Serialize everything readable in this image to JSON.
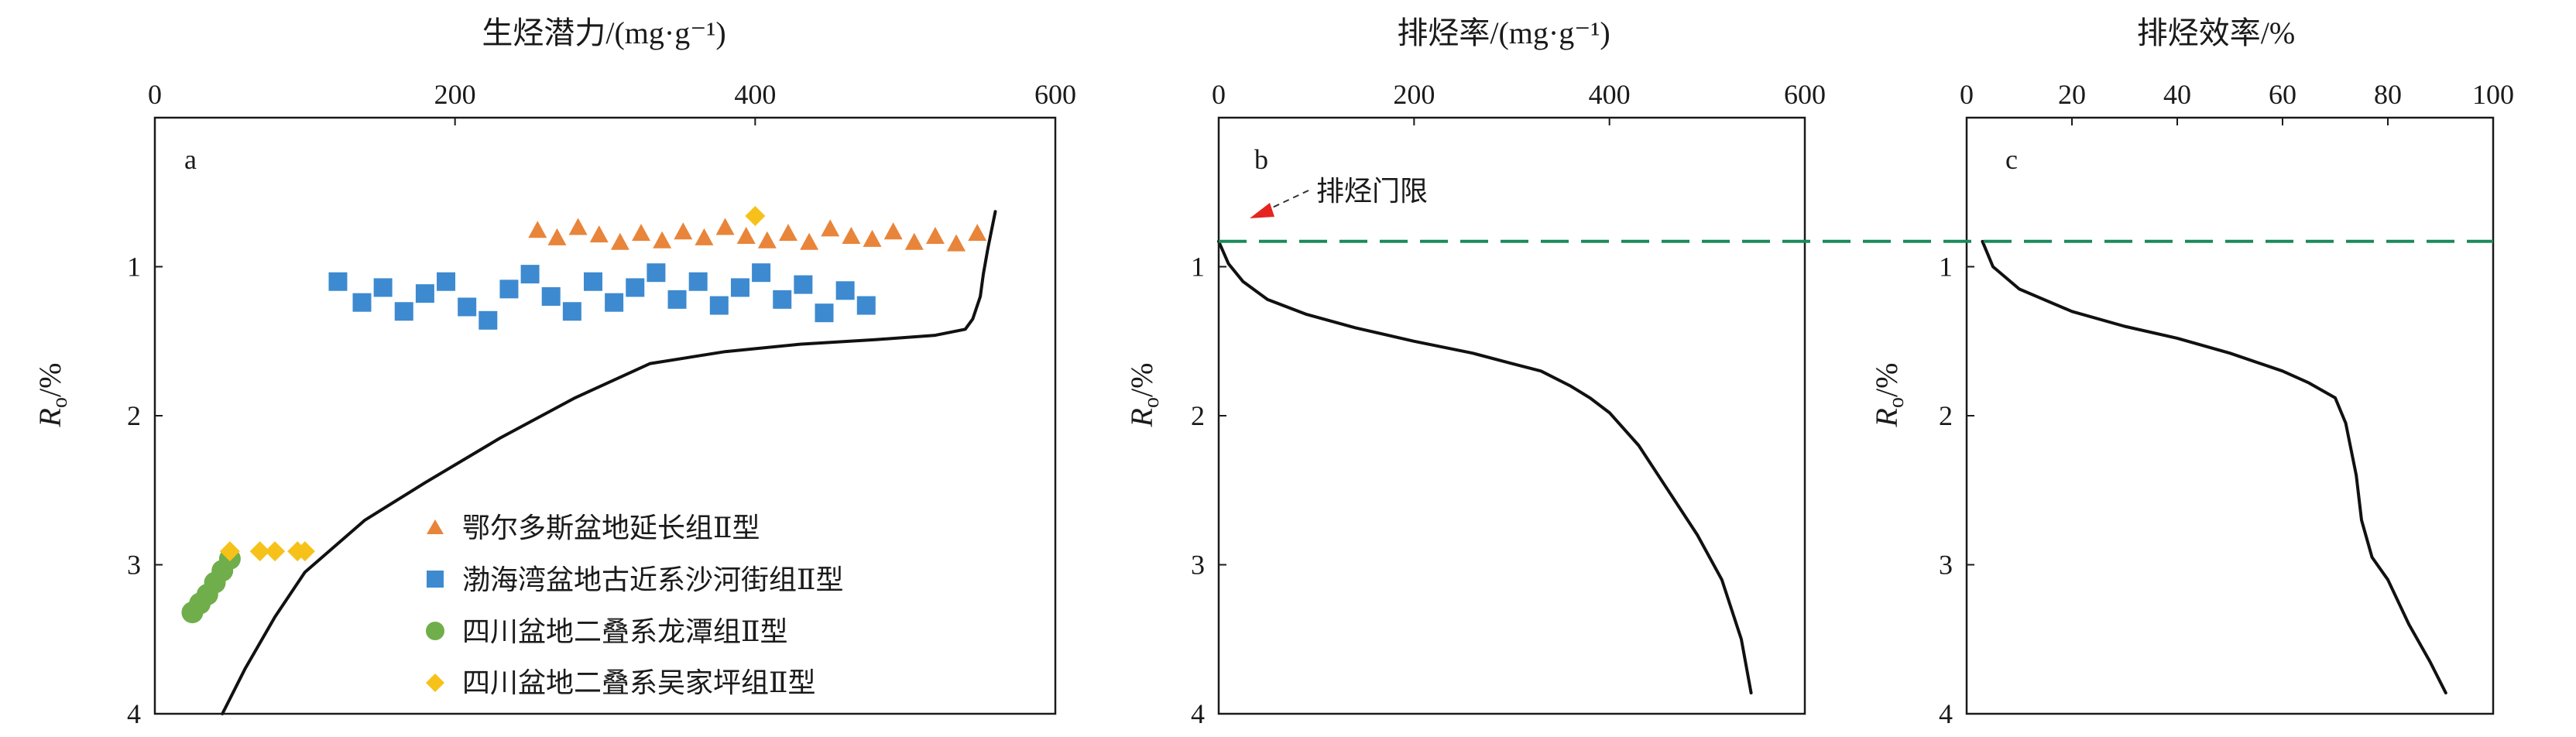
{
  "colors": {
    "frame": "#1a1a1a",
    "curve": "#111111",
    "threshold_line": "#1a8a5a",
    "arrow": "#e52420",
    "ordos": "#e8853a",
    "bohai": "#3d8ad0",
    "longtan": "#6fae4a",
    "wujiaping": "#f6c21a"
  },
  "chart_data": [
    {
      "panel": "a",
      "type": "scatter",
      "xlabel": "生烃潜力/(mg·g⁻¹)",
      "ylabel_main": "R",
      "ylabel_sub": "o",
      "ylabel_unit": "/%",
      "xlim": [
        0,
        600
      ],
      "ylim": [
        0,
        4
      ],
      "y_inverted": true,
      "x_axis_position": "top",
      "xticks": [
        "0",
        "200",
        "400",
        "600"
      ],
      "yticks": [
        "1",
        "2",
        "3",
        "4"
      ],
      "grid": false,
      "legend_position": "bottom-right",
      "curve": {
        "x": [
          45,
          60,
          80,
          100,
          140,
          180,
          230,
          280,
          330,
          380,
          430,
          480,
          520,
          540,
          545,
          550,
          552,
          555,
          558,
          560
        ],
        "y": [
          4.0,
          3.7,
          3.35,
          3.05,
          2.7,
          2.45,
          2.15,
          1.88,
          1.65,
          1.57,
          1.52,
          1.49,
          1.46,
          1.42,
          1.35,
          1.2,
          1.05,
          0.88,
          0.73,
          0.63
        ]
      },
      "series": [
        {
          "name": "鄂尔多斯盆地延长组Ⅱ型",
          "marker": "triangle",
          "color": "#e8853a",
          "x": [
            255,
            268,
            282,
            296,
            310,
            324,
            338,
            352,
            366,
            380,
            394,
            408,
            422,
            436,
            450,
            464,
            478,
            492,
            506,
            520,
            534,
            548
          ],
          "y": [
            0.76,
            0.81,
            0.74,
            0.79,
            0.84,
            0.78,
            0.83,
            0.77,
            0.81,
            0.74,
            0.8,
            0.83,
            0.78,
            0.84,
            0.75,
            0.8,
            0.82,
            0.77,
            0.84,
            0.8,
            0.85,
            0.78
          ]
        },
        {
          "name": "渤海湾盆地古近系沙河街组Ⅱ型",
          "marker": "square",
          "color": "#3d8ad0",
          "x": [
            122,
            138,
            152,
            166,
            180,
            194,
            208,
            222,
            236,
            250,
            264,
            278,
            292,
            306,
            320,
            334,
            348,
            362,
            376,
            390,
            404,
            418,
            432,
            446,
            460,
            474
          ],
          "y": [
            1.1,
            1.24,
            1.14,
            1.3,
            1.18,
            1.1,
            1.27,
            1.36,
            1.15,
            1.05,
            1.2,
            1.3,
            1.1,
            1.24,
            1.14,
            1.04,
            1.22,
            1.1,
            1.26,
            1.14,
            1.04,
            1.22,
            1.12,
            1.31,
            1.16,
            1.26
          ]
        },
        {
          "name": "四川盆地二叠系龙潭组Ⅱ型",
          "marker": "circle",
          "color": "#6fae4a",
          "x": [
            25,
            30,
            35,
            40,
            45,
            50
          ],
          "y": [
            3.32,
            3.26,
            3.2,
            3.12,
            3.04,
            2.96
          ]
        },
        {
          "name": "四川盆地二叠系吴家坪组Ⅱ型",
          "marker": "diamond",
          "color": "#f6c21a",
          "x": [
            50,
            70,
            80,
            95,
            100,
            400
          ],
          "y": [
            2.91,
            2.91,
            2.91,
            2.91,
            2.91,
            0.66
          ]
        }
      ]
    },
    {
      "panel": "b",
      "type": "line",
      "xlabel": "排烃率/(mg·g⁻¹)",
      "ylabel_main": "R",
      "ylabel_sub": "o",
      "ylabel_unit": "/%",
      "xlim": [
        0,
        600
      ],
      "ylim": [
        0,
        4
      ],
      "y_inverted": true,
      "x_axis_position": "top",
      "xticks": [
        "0",
        "200",
        "400",
        "600"
      ],
      "yticks": [
        "1",
        "2",
        "3",
        "4"
      ],
      "grid": false,
      "threshold_y": 0.83,
      "annotation": "排烃门限",
      "curve": {
        "x": [
          0,
          10,
          25,
          50,
          90,
          140,
          200,
          260,
          300,
          330,
          360,
          380,
          400,
          430,
          460,
          490,
          515,
          535,
          545
        ],
        "y": [
          0.83,
          0.98,
          1.1,
          1.22,
          1.32,
          1.41,
          1.5,
          1.58,
          1.65,
          1.7,
          1.8,
          1.88,
          1.98,
          2.2,
          2.5,
          2.8,
          3.1,
          3.5,
          3.86
        ]
      }
    },
    {
      "panel": "c",
      "type": "line",
      "xlabel": "排烃效率/%",
      "ylabel_main": "R",
      "ylabel_sub": "o",
      "ylabel_unit": "/%",
      "xlim": [
        0,
        100
      ],
      "ylim": [
        0,
        4
      ],
      "y_inverted": true,
      "x_axis_position": "top",
      "xticks": [
        "0",
        "20",
        "40",
        "60",
        "80",
        "100"
      ],
      "yticks": [
        "1",
        "2",
        "3",
        "4"
      ],
      "grid": false,
      "threshold_y": 0.83,
      "curve": {
        "x": [
          3,
          5,
          10,
          20,
          30,
          40,
          50,
          60,
          65,
          70,
          72,
          74,
          75,
          77,
          80,
          84,
          88,
          91
        ],
        "y": [
          0.83,
          1.0,
          1.15,
          1.3,
          1.4,
          1.48,
          1.58,
          1.7,
          1.78,
          1.88,
          2.05,
          2.4,
          2.7,
          2.95,
          3.1,
          3.4,
          3.65,
          3.86
        ]
      }
    }
  ]
}
